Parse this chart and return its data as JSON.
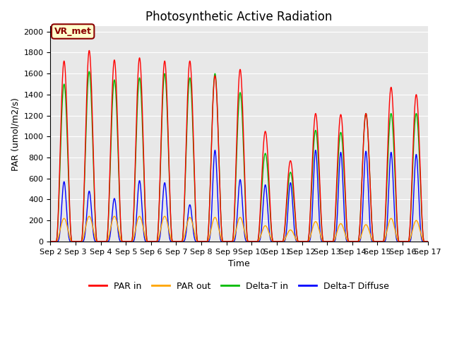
{
  "title": "Photosynthetic Active Radiation",
  "xlabel": "Time",
  "ylabel": "PAR (umol/m2/s)",
  "ylim": [
    0,
    2050
  ],
  "colors": {
    "PAR in": "#FF0000",
    "PAR out": "#FFA500",
    "Delta-T in": "#00BB00",
    "Delta-T Diffuse": "#0000FF"
  },
  "legend_labels": [
    "PAR in",
    "PAR out",
    "Delta-T in",
    "Delta-T Diffuse"
  ],
  "annotation_text": "VR_met",
  "annotation_bg": "#FFFFCC",
  "annotation_border": "#8B0000",
  "background_color": "#E8E8E8",
  "title_fontsize": 12,
  "axis_fontsize": 9,
  "tick_fontsize": 8,
  "par_in_peaks": [
    1720,
    1820,
    1730,
    1750,
    1720,
    1720,
    1580,
    1640,
    1050,
    770,
    1220,
    1210,
    1220,
    1470,
    1400
  ],
  "par_out_peaks": [
    220,
    240,
    240,
    240,
    240,
    230,
    230,
    230,
    150,
    110,
    190,
    170,
    160,
    220,
    200
  ],
  "delta_in_peaks": [
    1500,
    1620,
    1540,
    1560,
    1600,
    1560,
    1600,
    1420,
    840,
    660,
    1060,
    1040,
    1220,
    1220,
    1220
  ],
  "delta_diff_peaks": [
    570,
    480,
    410,
    580,
    560,
    350,
    870,
    590,
    540,
    560,
    870,
    850,
    860,
    850,
    830
  ]
}
